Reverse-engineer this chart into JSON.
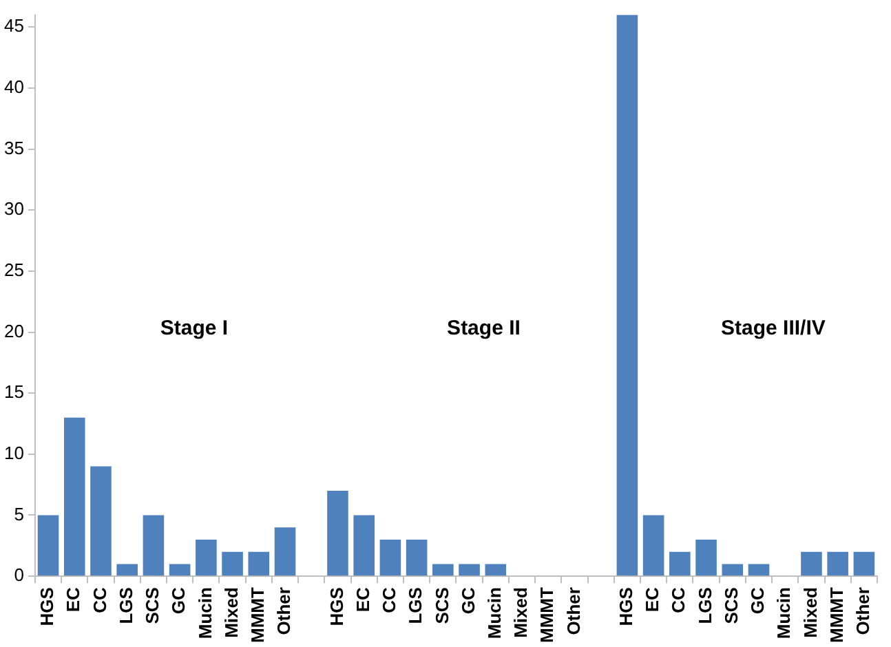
{
  "chart_data": {
    "type": "bar",
    "categories": [
      "HGS",
      "EC",
      "CC",
      "LGS",
      "SCS",
      "GC",
      "Mucin",
      "Mixed",
      "MMMT",
      "Other",
      null,
      "HGS",
      "EC",
      "CC",
      "LGS",
      "SCS",
      "GC",
      "Mucin",
      "Mixed",
      "MMMT",
      "Other",
      null,
      "HGS",
      "EC",
      "CC",
      "LGS",
      "SCS",
      "GC",
      "Mucin",
      "Mixed",
      "MMMT",
      "Other"
    ],
    "values": [
      5,
      13,
      9,
      1,
      5,
      1,
      3,
      2,
      2,
      4,
      null,
      7,
      5,
      3,
      3,
      1,
      1,
      1,
      0,
      0,
      0,
      null,
      46,
      5,
      2,
      3,
      1,
      1,
      0,
      2,
      2,
      2
    ],
    "color": "#4f81bd",
    "ylim": [
      0,
      46
    ],
    "yticks": [
      0,
      5,
      10,
      15,
      20,
      25,
      30,
      35,
      40,
      45
    ],
    "annotations": [
      "Stage I",
      "Stage II",
      "Stage III/IV"
    ],
    "grid": false,
    "legend": false
  }
}
